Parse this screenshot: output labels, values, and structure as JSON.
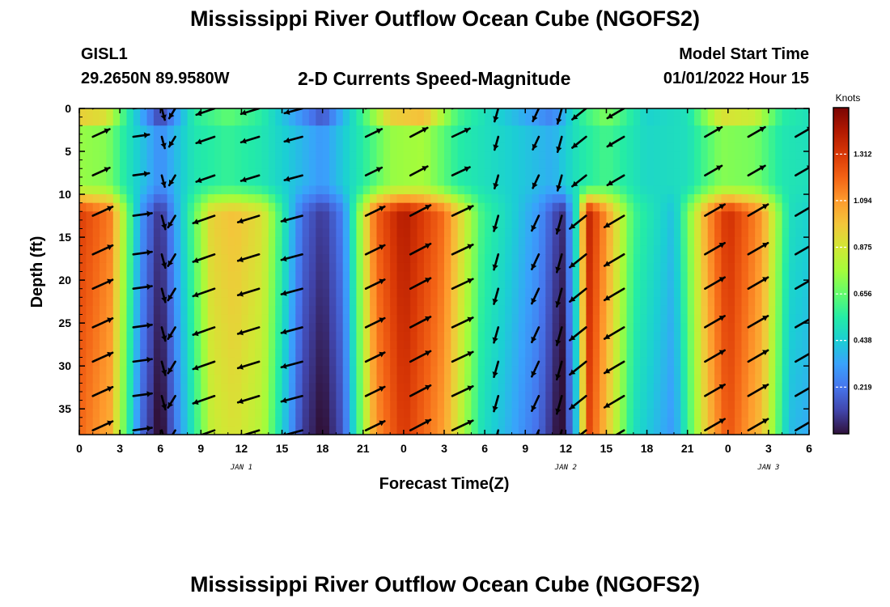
{
  "header": {
    "title": "Mississippi River Outflow Ocean Cube (NGOFS2)",
    "station_id": "GISL1",
    "station_coords": "29.2650N  89.9580W",
    "plot_title": "2-D Currents Speed-Magnitude",
    "model_start_label": "Model Start Time",
    "model_start_value": "01/01/2022 Hour 15"
  },
  "footer": {
    "repeated_title": "Mississippi River Outflow Ocean Cube (NGOFS2)"
  },
  "chart_data": {
    "type": "heatmap",
    "title": "2-D Currents Speed-Magnitude",
    "xlabel": "Forecast Time(Z)",
    "ylabel": "Depth (ft)",
    "x_tick_labels": [
      "0",
      "3",
      "6",
      "9",
      "12",
      "15",
      "18",
      "21",
      "0",
      "3",
      "6",
      "9",
      "12",
      "15",
      "18",
      "21",
      "0",
      "3",
      "6"
    ],
    "x_range_hours": [
      0,
      54
    ],
    "date_labels": [
      {
        "label": "JAN 1",
        "hour": 12
      },
      {
        "label": "JAN 2",
        "hour": 36
      },
      {
        "label": "JAN 3",
        "hour": 51
      }
    ],
    "y_ticks": [
      0,
      5,
      10,
      15,
      20,
      25,
      30,
      35
    ],
    "y_range": [
      0,
      38
    ],
    "y_inverted": true,
    "colorbar": {
      "title": "Knots",
      "tick_values": [
        1.312,
        1.094,
        0.875,
        0.656,
        0.438,
        0.219
      ],
      "range": [
        0,
        1.53
      ],
      "colormap": [
        "#30123b",
        "#4145ab",
        "#4675ed",
        "#39a2fc",
        "#1bcfd4",
        "#24eca6",
        "#61fc6c",
        "#a4fc3b",
        "#d1e834",
        "#f3c63a",
        "#fe9b2d",
        "#f36315",
        "#d93806",
        "#b11901",
        "#7a0403"
      ]
    },
    "speed_bands": [
      {
        "hour": 0,
        "peak": 1.3
      },
      {
        "hour": 2.3,
        "peak": 1.15
      },
      {
        "hour": 4.6,
        "peak": 0.3
      },
      {
        "hour": 6,
        "peak": 0.05
      },
      {
        "hour": 7.2,
        "peak": 0.35
      },
      {
        "hour": 9.8,
        "peak": 0.95
      },
      {
        "hour": 11.5,
        "peak": 1.0
      },
      {
        "hour": 13.6,
        "peak": 0.9
      },
      {
        "hour": 16.5,
        "peak": 0.2
      },
      {
        "hour": 18,
        "peak": 0.08
      },
      {
        "hour": 19.5,
        "peak": 0.25
      },
      {
        "hour": 21.9,
        "peak": 1.2
      },
      {
        "hour": 24,
        "peak": 1.42
      },
      {
        "hour": 27,
        "peak": 1.18
      },
      {
        "hour": 29.8,
        "peak": 0.6
      },
      {
        "hour": 32,
        "peak": 0.45
      },
      {
        "hour": 34,
        "peak": 0.3
      },
      {
        "hour": 35.7,
        "peak": 0.05
      },
      {
        "hour": 36.7,
        "peak": 0.45
      },
      {
        "hour": 37.6,
        "peak": 1.4
      },
      {
        "hour": 39,
        "peak": 1.1
      },
      {
        "hour": 41,
        "peak": 0.6
      },
      {
        "hour": 44,
        "peak": 0.4
      },
      {
        "hour": 46.5,
        "peak": 1.1
      },
      {
        "hour": 48,
        "peak": 1.35
      },
      {
        "hour": 50.5,
        "peak": 1.1
      },
      {
        "hour": 52.5,
        "peak": 0.5
      },
      {
        "hour": 54,
        "peak": 0.45
      }
    ],
    "surface_bands": [
      {
        "hour": 0,
        "speed": 0.95
      },
      {
        "hour": 2,
        "speed": 0.9
      },
      {
        "hour": 3.5,
        "speed": 0.55
      },
      {
        "hour": 6,
        "speed": 0.1
      },
      {
        "hour": 8.5,
        "speed": 0.55
      },
      {
        "hour": 11,
        "speed": 0.65
      },
      {
        "hour": 13.5,
        "speed": 0.55
      },
      {
        "hour": 18,
        "speed": 0.15
      },
      {
        "hour": 21,
        "speed": 0.6
      },
      {
        "hour": 23,
        "speed": 0.95
      },
      {
        "hour": 25.5,
        "speed": 1.0
      },
      {
        "hour": 28,
        "speed": 0.6
      },
      {
        "hour": 31,
        "speed": 0.45
      },
      {
        "hour": 35,
        "speed": 0.25
      },
      {
        "hour": 37,
        "speed": 0.55
      },
      {
        "hour": 39,
        "speed": 0.7
      },
      {
        "hour": 42,
        "speed": 0.45
      },
      {
        "hour": 45,
        "speed": 0.5
      },
      {
        "hour": 47.5,
        "speed": 0.9
      },
      {
        "hour": 50,
        "speed": 0.85
      },
      {
        "hour": 52,
        "speed": 0.55
      },
      {
        "hour": 54,
        "speed": 0.5
      }
    ],
    "vector_hours": [
      1,
      4,
      6.1,
      7.1,
      10,
      13.3,
      16.5,
      21.2,
      24.5,
      27.6,
      31,
      34,
      35.7,
      37.5,
      40.3,
      46.3,
      49.5,
      53
    ],
    "vector_depths": [
      0,
      3.3,
      7.8,
      12.5,
      17,
      21,
      25.5,
      29.5,
      33.5,
      37.5
    ],
    "vector_phase": [
      {
        "hour": 0,
        "angle": -30,
        "speed": 1.0
      },
      {
        "hour": 4.5,
        "angle": -5,
        "speed": 0.8
      },
      {
        "hour": 6.2,
        "angle": 80,
        "speed": 0.6
      },
      {
        "hour": 7.5,
        "angle": 140,
        "speed": 0.6
      },
      {
        "hour": 9,
        "angle": 160,
        "speed": 1.0
      },
      {
        "hour": 16.5,
        "angle": 165,
        "speed": 0.95
      },
      {
        "hour": 18,
        "angle": 180,
        "speed": 0.6
      },
      {
        "hour": 20,
        "angle": -10,
        "speed": 0.6
      },
      {
        "hour": 21.5,
        "angle": -30,
        "speed": 1.0
      },
      {
        "hour": 28,
        "angle": -25,
        "speed": 1.0
      },
      {
        "hour": 30,
        "angle": 100,
        "speed": 0.7
      },
      {
        "hour": 33.5,
        "angle": 120,
        "speed": 0.7
      },
      {
        "hour": 35.5,
        "angle": 100,
        "speed": 0.8
      },
      {
        "hour": 37,
        "angle": 140,
        "speed": 0.9
      },
      {
        "hour": 40.5,
        "angle": 150,
        "speed": 1.0
      },
      {
        "hour": 44,
        "angle": 150,
        "speed": 0.8
      },
      {
        "hour": 45.5,
        "angle": -30,
        "speed": 1.0
      },
      {
        "hour": 54,
        "angle": -30,
        "speed": 1.0
      }
    ]
  }
}
